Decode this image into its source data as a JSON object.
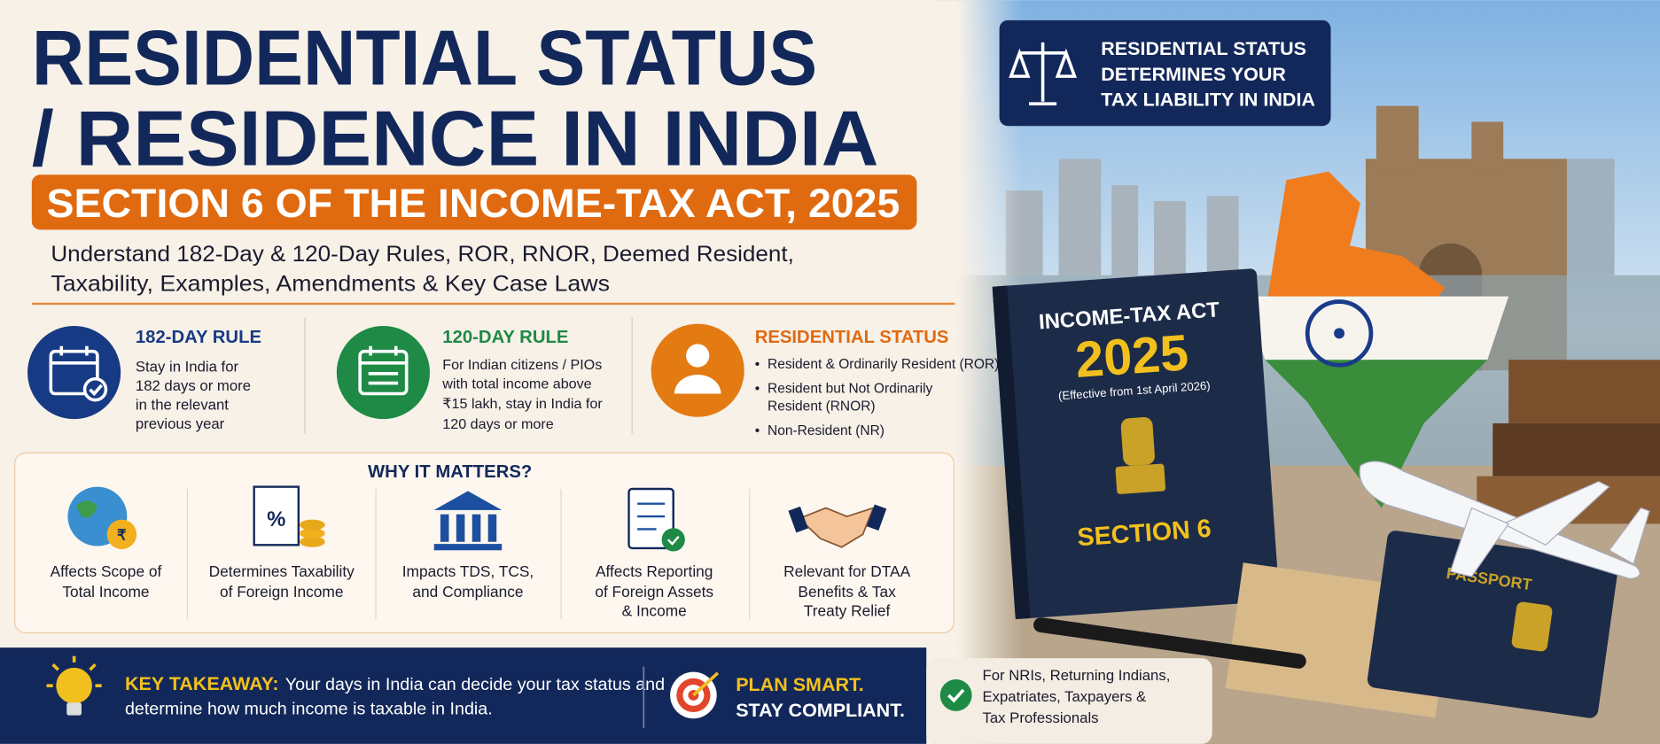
{
  "header": {
    "title_lines": [
      "RESIDENTIAL STATUS",
      "/ RESIDENCE IN INDIA"
    ],
    "subtitle": "SECTION 6 OF THE INCOME-TAX ACT, 2025",
    "description_lines": [
      "Understand 182-Day & 120-Day Rules, ROR, RNOR, Deemed Resident,",
      "Taxability, Examples, Amendments & Key Case Laws"
    ]
  },
  "rules": [
    {
      "title": "182-DAY RULE",
      "lines": [
        "Stay in India for",
        "182 days or more",
        "in the relevant",
        "previous year"
      ]
    },
    {
      "title": "120-DAY RULE",
      "lines": [
        "For Indian citizens / PIOs",
        "with total income above",
        "₹15 lakh, stay in India for",
        "120 days or more"
      ]
    },
    {
      "title": "RESIDENTIAL STATUS",
      "bullets": [
        [
          "Resident & Ordinarily Resident (ROR)"
        ],
        [
          "Resident but Not Ordinarily",
          "Resident (RNOR)"
        ],
        [
          "Non-Resident (NR)"
        ]
      ]
    }
  ],
  "why_it_matters": {
    "title": "WHY IT MATTERS?",
    "items": [
      [
        "Affects Scope of",
        "Total Income"
      ],
      [
        "Determines Taxability",
        "of Foreign Income"
      ],
      [
        "Impacts TDS, TCS,",
        "and Compliance"
      ],
      [
        "Affects Reporting",
        "of Foreign Assets",
        "& Income"
      ],
      [
        "Relevant for DTAA",
        "Benefits & Tax",
        "Treaty Relief"
      ]
    ]
  },
  "key_takeaway": {
    "label": "KEY TAKEAWAY:",
    "lines": [
      "Your days in India can decide your tax status and",
      "determine how much income is taxable in India."
    ]
  },
  "plan": [
    "PLAN SMART.",
    "STAY COMPLIANT."
  ],
  "audience": [
    "For NRIs, Returning Indians,",
    "Expatriates, Taxpayers &",
    "Tax Professionals"
  ],
  "callout": [
    "RESIDENTIAL STATUS",
    "DETERMINES YOUR",
    "TAX LIABILITY IN INDIA"
  ],
  "book": {
    "title": "INCOME-TAX ACT",
    "year": "2025",
    "note": "(Effective from 1st April 2026)",
    "section": "SECTION 6"
  },
  "passport": "PASSPORT"
}
